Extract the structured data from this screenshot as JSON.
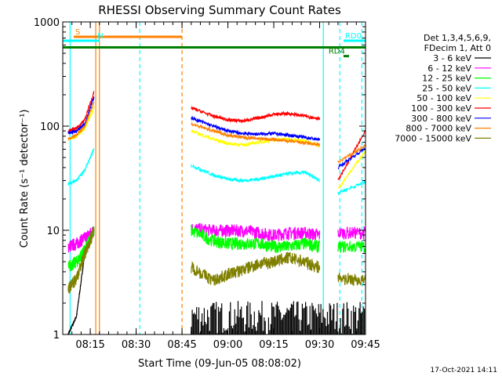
{
  "chart_data": {
    "type": "line",
    "title": "RHESSI Observing Summary Count Rates",
    "xlabel": "Start Time (09-Jun-05 08:08:02)",
    "ylabel": "Count Rate (s⁻¹ detector⁻¹)",
    "y_scale": "log",
    "ylim": [
      1,
      1000
    ],
    "xlim_minutes": [
      8.1,
      9.75
    ],
    "y_ticks": [
      {
        "value": 1,
        "label": "1"
      },
      {
        "value": 10,
        "label": "10"
      },
      {
        "value": 100,
        "label": "100"
      },
      {
        "value": 1000,
        "label": "1000"
      }
    ],
    "x_ticks": [
      {
        "value": 8.25,
        "label": "08:15"
      },
      {
        "value": 8.5,
        "label": "08:30"
      },
      {
        "value": 8.75,
        "label": "08:45"
      },
      {
        "value": 9.0,
        "label": "09:00"
      },
      {
        "value": 9.25,
        "label": "09:15"
      },
      {
        "value": 9.5,
        "label": "09:30"
      },
      {
        "value": 9.75,
        "label": "09:45"
      }
    ],
    "legend_header": [
      "Det 1,3,4,5,6,9,",
      "FDecim 1, Att 0"
    ],
    "legend_position": "top-right",
    "series": [
      {
        "name": "3 - 6 keV",
        "color": "#000000",
        "seg1": [
          1.0,
          1.5,
          6.0,
          10.0
        ],
        "seg2_shape": "noise",
        "seg2_level": 1.6
      },
      {
        "name": "6 - 12 keV",
        "color": "#ff00ff",
        "seg1": [
          7.0,
          7.5,
          8.5,
          10.0
        ],
        "seg2": [
          10.5,
          10.0,
          10.0,
          10.0,
          9.5,
          9.0,
          9.5,
          9.5,
          9.0
        ],
        "seg3": [
          9.5,
          9.5
        ]
      },
      {
        "name": "12 - 25 keV",
        "color": "#00ff00",
        "seg1": [
          4.5,
          5.0,
          6.5,
          10.0
        ],
        "seg2": [
          10.0,
          8.0,
          7.5,
          7.5,
          7.5,
          7.0,
          7.0,
          7.5,
          7.0
        ],
        "seg3": [
          7.0,
          7.0
        ]
      },
      {
        "name": "25 - 50 keV",
        "color": "#00ffff",
        "seg1": [
          28.0,
          30.0,
          38.0,
          60.0
        ],
        "seg2": [
          42.0,
          34.0,
          31.0,
          30.0,
          31.0,
          33.0,
          35.0,
          36.0,
          30.0
        ],
        "seg3": [
          23.0,
          29.0
        ]
      },
      {
        "name": "50 - 100 keV",
        "color": "#ffff00",
        "seg1": [
          75.0,
          80.0,
          95.0,
          150.0
        ],
        "seg2": [
          90.0,
          75.0,
          68.0,
          66.0,
          70.0,
          74.0,
          75.0,
          72.0,
          65.0
        ],
        "seg3": [
          25.0,
          58.0
        ]
      },
      {
        "name": "100 - 300 keV",
        "color": "#ff0000",
        "seg1": [
          90.0,
          95.0,
          115.0,
          210.0
        ],
        "seg2": [
          150.0,
          125.0,
          115.0,
          112.0,
          120.0,
          130.0,
          132.0,
          125.0,
          118.0
        ],
        "seg3": [
          30.0,
          90.0
        ]
      },
      {
        "name": "300 - 800 keV",
        "color": "#0000ff",
        "seg1": [
          85.0,
          90.0,
          105.0,
          190.0
        ],
        "seg2": [
          120.0,
          100.0,
          90.0,
          85.0,
          84.0,
          85.0,
          82.0,
          78.0,
          74.0
        ],
        "seg3": [
          40.0,
          62.0
        ]
      },
      {
        "name": "800 - 7000 keV",
        "color": "#ff8000",
        "seg1": [
          75.0,
          82.0,
          100.0,
          170.0
        ],
        "seg2": [
          105.0,
          90.0,
          82.0,
          78.0,
          76.0,
          74.0,
          72.0,
          69.0,
          66.0
        ],
        "seg3": [
          45.0,
          65.0
        ]
      },
      {
        "name": "7000 - 15000 keV",
        "color": "#808000",
        "seg1": [
          2.7,
          3.5,
          6.0,
          10.0
        ],
        "seg2": [
          4.5,
          3.3,
          3.8,
          4.2,
          4.8,
          5.0,
          5.5,
          5.0,
          4.4
        ],
        "seg3": [
          3.5,
          3.3
        ]
      }
    ],
    "segments_minutes": {
      "seg1": [
        8.13,
        8.175,
        8.22,
        8.27
      ],
      "seg2": [
        8.8,
        8.92,
        9.0,
        9.08,
        9.17,
        9.25,
        9.33,
        9.42,
        9.5
      ],
      "seg3": [
        9.6,
        9.75
      ]
    },
    "event_bars": [
      {
        "label": "S",
        "color": "#ff8000",
        "from": 8.16,
        "to": 8.75,
        "y": 720,
        "label_at": 8.16
      },
      {
        "label": "N",
        "color": "#00ffff",
        "from": 8.1,
        "to": 8.3,
        "y": 660,
        "label_at": 8.28
      },
      {
        "label": "RD0",
        "color": "#00ffff",
        "from": 9.63,
        "to": 9.75,
        "y": 660,
        "label_at": 9.63
      },
      {
        "label": "",
        "color": "#008000",
        "from": 8.1,
        "to": 9.75,
        "y": 570,
        "label_at": 8.1
      },
      {
        "label": "RD4",
        "color": "#008000",
        "from": 9.63,
        "to": 9.66,
        "y": 470,
        "label_at": 9.54
      }
    ],
    "vertical_markers": [
      {
        "time": 8.14,
        "color": "#00ffff",
        "style": "solid"
      },
      {
        "time": 8.28,
        "color": "#ff8000",
        "style": "solid"
      },
      {
        "time": 8.3,
        "color": "#ff8000",
        "style": "solid"
      },
      {
        "time": 8.52,
        "color": "#00ffff",
        "style": "dashed"
      },
      {
        "time": 8.75,
        "color": "#ff8000",
        "style": "dashed"
      },
      {
        "time": 9.52,
        "color": "#00ffff",
        "style": "solid"
      },
      {
        "time": 9.61,
        "color": "#00ffff",
        "style": "dashed"
      },
      {
        "time": 9.73,
        "color": "#00ffff",
        "style": "dashed"
      }
    ],
    "footer_date": "17-Oct-2021 14:11"
  }
}
